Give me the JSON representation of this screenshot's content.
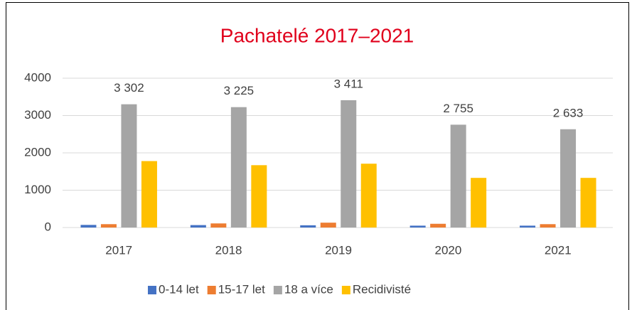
{
  "chart_data": {
    "type": "bar",
    "title": "Pachatelé 2017–2021",
    "categories": [
      "2017",
      "2018",
      "2019",
      "2020",
      "2021"
    ],
    "series": [
      {
        "name": "0-14 let",
        "color": "#4472c4",
        "values": [
          70,
          65,
          60,
          50,
          50
        ]
      },
      {
        "name": "15-17 let",
        "color": "#ed7d31",
        "values": [
          90,
          110,
          130,
          100,
          90
        ]
      },
      {
        "name": "18 a více",
        "color": "#a5a5a5",
        "values": [
          3302,
          3225,
          3411,
          2755,
          2633
        ],
        "value_labels": [
          "3 302",
          "3 225",
          "3 411",
          "2 755",
          "2 633"
        ]
      },
      {
        "name": "Recidivisté",
        "color": "#ffc000",
        "values": [
          1780,
          1670,
          1710,
          1330,
          1330
        ]
      }
    ],
    "ylim": [
      0,
      4000
    ],
    "yticks": [
      0,
      1000,
      2000,
      3000,
      4000
    ],
    "grid": true,
    "legend": "bottom"
  }
}
